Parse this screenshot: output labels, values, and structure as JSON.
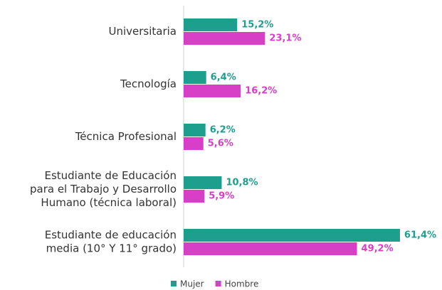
{
  "chart_data": {
    "type": "bar",
    "orientation": "horizontal",
    "categories": [
      "Universitaria",
      "Tecnología",
      "Técnica Profesional",
      "Estudiante de Educación\npara el Trabajo y Desarrollo\nHumano (técnica laboral)",
      "Estudiante de educación\nmedia (10° Y 11° grado)"
    ],
    "series": [
      {
        "name": "Mujer",
        "color": "#1e9e8c",
        "values": [
          15.2,
          6.4,
          6.2,
          10.8,
          61.4
        ],
        "value_labels": [
          "15,2%",
          "6,4%",
          "6,2%",
          "10,8%",
          "61,4%"
        ]
      },
      {
        "name": "Hombre",
        "color": "#d63fc6",
        "values": [
          23.1,
          16.2,
          5.6,
          5.9,
          49.2
        ],
        "value_labels": [
          "23,1%",
          "16,2%",
          "5,6%",
          "5,9%",
          "49,2%"
        ]
      }
    ],
    "legend": "bottom"
  }
}
